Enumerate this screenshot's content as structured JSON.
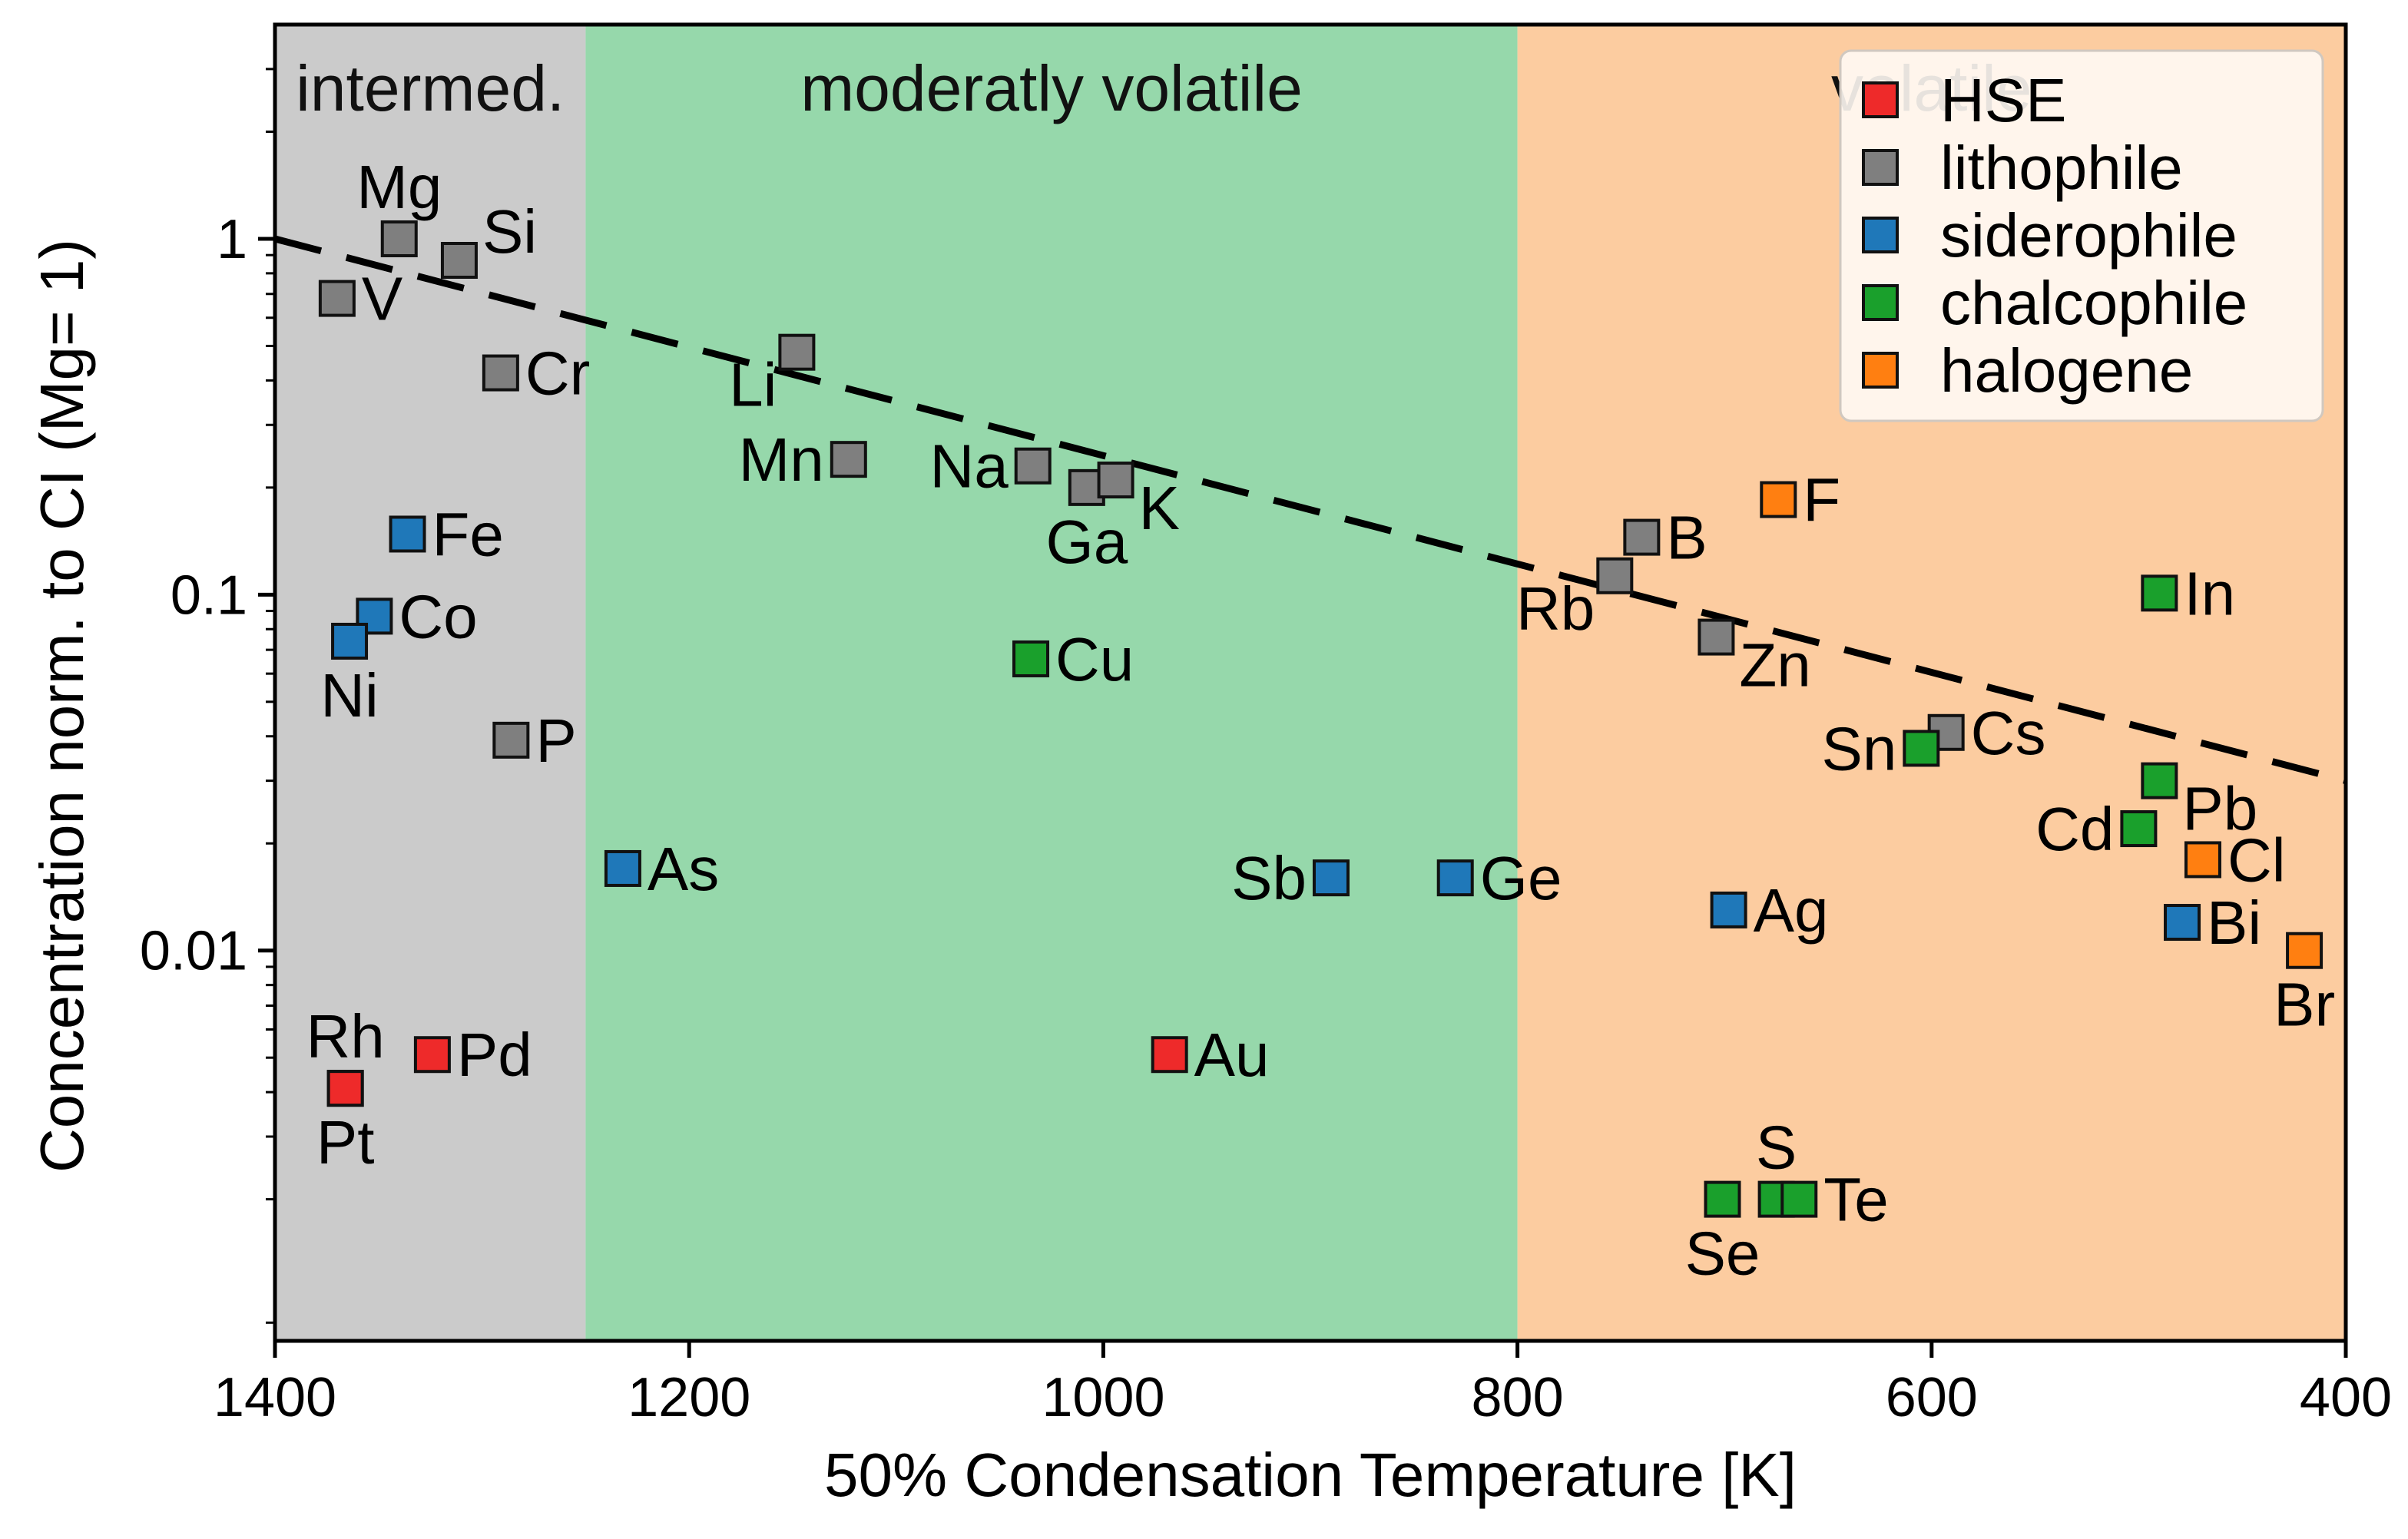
{
  "chart_data": {
    "type": "scatter",
    "title": "",
    "xlabel": "50% Condensation Temperature [K]",
    "ylabel": "Concentration norm. to CI (Mg= 1)",
    "xlim": [
      1400,
      400
    ],
    "ylim": [
      0.0008,
      4
    ],
    "yscale": "log",
    "x_ticks": [
      {
        "value": 1400,
        "label": "1400"
      },
      {
        "value": 1200,
        "label": "1200"
      },
      {
        "value": 1000,
        "label": "1000"
      },
      {
        "value": 800,
        "label": "800"
      },
      {
        "value": 600,
        "label": "600"
      },
      {
        "value": 400,
        "label": "400"
      }
    ],
    "y_ticks": [
      {
        "value": 1,
        "label": "1"
      },
      {
        "value": 0.1,
        "label": "0.1"
      },
      {
        "value": 0.01,
        "label": "0.01"
      }
    ],
    "regions": [
      {
        "label": "intermed.",
        "from": 1400,
        "to": 1250,
        "color": "#cbcbcb"
      },
      {
        "label": "moderatly volatile",
        "from": 1250,
        "to": 800,
        "color": "#96d8ab"
      },
      {
        "label": "volatile",
        "from": 800,
        "to": 400,
        "color": "#fccca0"
      }
    ],
    "trend_line": {
      "points": [
        [
          1400,
          1.0
        ],
        [
          400,
          0.03
        ]
      ],
      "style": "dashed"
    },
    "categories": [
      {
        "name": "HSE",
        "color": "#ee2a2a"
      },
      {
        "name": "lithophile",
        "color": "#7f7f7f"
      },
      {
        "name": "siderophile",
        "color": "#1f78b9"
      },
      {
        "name": "chalcophile",
        "color": "#1aa02c"
      },
      {
        "name": "halogene",
        "color": "#ff7f11"
      }
    ],
    "legend_position": "top-right",
    "points": [
      {
        "element": "Mg",
        "x": 1340,
        "y": 1.0,
        "group": "lithophile",
        "label_pos": "above"
      },
      {
        "element": "Si",
        "x": 1311,
        "y": 0.87,
        "group": "lithophile",
        "label_pos": "upper-right"
      },
      {
        "element": "V",
        "x": 1370,
        "y": 0.68,
        "group": "lithophile",
        "label_pos": "right"
      },
      {
        "element": "Cr",
        "x": 1291,
        "y": 0.42,
        "group": "lithophile",
        "label_pos": "right"
      },
      {
        "element": "Li",
        "x": 1148,
        "y": 0.48,
        "group": "lithophile",
        "label_pos": "lower-left"
      },
      {
        "element": "Mn",
        "x": 1123,
        "y": 0.24,
        "group": "lithophile",
        "label_pos": "left"
      },
      {
        "element": "Na",
        "x": 1034,
        "y": 0.23,
        "group": "lithophile",
        "label_pos": "left"
      },
      {
        "element": "Ga",
        "x": 1008,
        "y": 0.2,
        "group": "lithophile",
        "label_pos": "below"
      },
      {
        "element": "K",
        "x": 994,
        "y": 0.21,
        "group": "lithophile",
        "label_pos": "lower-right"
      },
      {
        "element": "P",
        "x": 1286,
        "y": 0.039,
        "group": "lithophile",
        "label_pos": "right"
      },
      {
        "element": "B",
        "x": 740,
        "y": 0.145,
        "group": "lithophile",
        "label_pos": "right"
      },
      {
        "element": "Rb",
        "x": 753,
        "y": 0.113,
        "group": "lithophile",
        "label_pos": "lower-left"
      },
      {
        "element": "Zn",
        "x": 704,
        "y": 0.076,
        "group": "lithophile",
        "label_pos": "lower-right"
      },
      {
        "element": "Cs",
        "x": 593,
        "y": 0.041,
        "group": "lithophile",
        "label_pos": "right"
      },
      {
        "element": "Fe",
        "x": 1336,
        "y": 0.148,
        "group": "siderophile",
        "label_pos": "right"
      },
      {
        "element": "Co",
        "x": 1352,
        "y": 0.087,
        "group": "siderophile",
        "label_pos": "right"
      },
      {
        "element": "Ni",
        "x": 1364,
        "y": 0.074,
        "group": "siderophile",
        "label_pos": "below"
      },
      {
        "element": "As",
        "x": 1232,
        "y": 0.017,
        "group": "siderophile",
        "label_pos": "right"
      },
      {
        "element": "Sb",
        "x": 890,
        "y": 0.016,
        "group": "siderophile",
        "label_pos": "left"
      },
      {
        "element": "Ge",
        "x": 830,
        "y": 0.016,
        "group": "siderophile",
        "label_pos": "right"
      },
      {
        "element": "Ag",
        "x": 698,
        "y": 0.013,
        "group": "siderophile",
        "label_pos": "right"
      },
      {
        "element": "Bi",
        "x": 479,
        "y": 0.012,
        "group": "siderophile",
        "label_pos": "right"
      },
      {
        "element": "Cu",
        "x": 1035,
        "y": 0.066,
        "group": "chalcophile",
        "label_pos": "right"
      },
      {
        "element": "In",
        "x": 490,
        "y": 0.101,
        "group": "chalcophile",
        "label_pos": "right"
      },
      {
        "element": "Sn",
        "x": 605,
        "y": 0.037,
        "group": "chalcophile",
        "label_pos": "left"
      },
      {
        "element": "Pb",
        "x": 490,
        "y": 0.03,
        "group": "chalcophile",
        "label_pos": "lower-right"
      },
      {
        "element": "Cd",
        "x": 500,
        "y": 0.022,
        "group": "chalcophile",
        "label_pos": "left"
      },
      {
        "element": "S",
        "x": 675,
        "y": 0.002,
        "group": "chalcophile",
        "label_pos": "above"
      },
      {
        "element": "Te",
        "x": 664,
        "y": 0.002,
        "group": "chalcophile",
        "label_pos": "right"
      },
      {
        "element": "Se",
        "x": 701,
        "y": 0.002,
        "group": "chalcophile",
        "label_pos": "below"
      },
      {
        "element": "F",
        "x": 674,
        "y": 0.185,
        "group": "halogene",
        "label_pos": "right"
      },
      {
        "element": "Cl",
        "x": 469,
        "y": 0.018,
        "group": "halogene",
        "label_pos": "right"
      },
      {
        "element": "Br",
        "x": 420,
        "y": 0.01,
        "group": "halogene",
        "label_pos": "below"
      },
      {
        "element": "Rh",
        "x": 1366,
        "y": 0.0041,
        "group": "HSE",
        "label_pos": "above"
      },
      {
        "element": "Pd",
        "x": 1324,
        "y": 0.0051,
        "group": "HSE",
        "label_pos": "right"
      },
      {
        "element": "Pt",
        "x": 1366,
        "y": 0.0041,
        "group": "HSE",
        "label_pos": "below"
      },
      {
        "element": "Au",
        "x": 968,
        "y": 0.0051,
        "group": "HSE",
        "label_pos": "right"
      }
    ]
  }
}
